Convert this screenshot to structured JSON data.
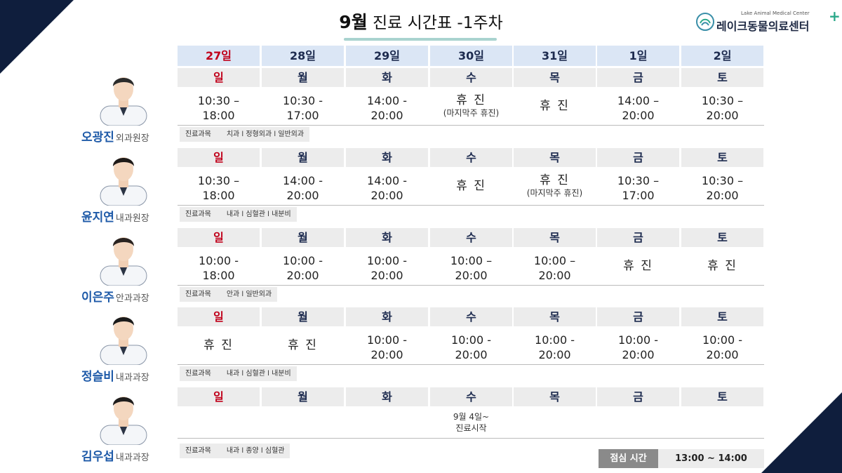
{
  "title": {
    "month": "9월",
    "rest": " 진료 시간표 -1주차"
  },
  "logo": {
    "en": "Lake Animal Medical Center",
    "ko": "레이크동물의료센터",
    "plus": "+"
  },
  "dates": [
    "27일",
    "28일",
    "29일",
    "30일",
    "31일",
    "1일",
    "2일"
  ],
  "weekdays": [
    "일",
    "월",
    "화",
    "수",
    "목",
    "금",
    "토"
  ],
  "subject_label": "진료과목",
  "doctors": [
    {
      "name": "오광진",
      "title": "외과원장",
      "subjects": "치과 l 정형외과 l 일반외과",
      "hours": [
        {
          "main": "10:30 –",
          "sub": "18:00"
        },
        {
          "main": "10:30 -",
          "sub": "17:00"
        },
        {
          "main": "14:00 -",
          "sub": "20:00"
        },
        {
          "main": "휴 진",
          "sub": "(마지막주 휴진)"
        },
        {
          "main": "휴 진",
          "sub": ""
        },
        {
          "main": "14:00 –",
          "sub": "20:00"
        },
        {
          "main": "10:30 –",
          "sub": "20:00"
        }
      ]
    },
    {
      "name": "윤지연",
      "title": "내과원장",
      "subjects": "내과 l 심혈관 l 내분비",
      "hours": [
        {
          "main": "10:30 –",
          "sub": "18:00"
        },
        {
          "main": "14:00 -",
          "sub": "20:00"
        },
        {
          "main": "14:00 -",
          "sub": "20:00"
        },
        {
          "main": "휴 진",
          "sub": ""
        },
        {
          "main": "휴 진",
          "sub": "(마지막주 휴진)"
        },
        {
          "main": "10:30 –",
          "sub": "17:00"
        },
        {
          "main": "10:30 –",
          "sub": "20:00"
        }
      ]
    },
    {
      "name": "이은주",
      "title": "안과과장",
      "subjects": "안과 l 일반외과",
      "hours": [
        {
          "main": "10:00 -",
          "sub": "18:00"
        },
        {
          "main": "10:00 -",
          "sub": "20:00"
        },
        {
          "main": "10:00 -",
          "sub": "20:00"
        },
        {
          "main": "10:00 –",
          "sub": "20:00"
        },
        {
          "main": "10:00 –",
          "sub": "20:00"
        },
        {
          "main": "휴 진",
          "sub": ""
        },
        {
          "main": "휴 진",
          "sub": ""
        }
      ]
    },
    {
      "name": "정슬비",
      "title": "내과과장",
      "subjects": "내과 l 심혈관 l 내분비",
      "hours": [
        {
          "main": "휴 진",
          "sub": ""
        },
        {
          "main": "휴 진",
          "sub": ""
        },
        {
          "main": "10:00 -",
          "sub": "20:00"
        },
        {
          "main": "10:00 -",
          "sub": "20:00"
        },
        {
          "main": "10:00 -",
          "sub": "20:00"
        },
        {
          "main": "10:00 -",
          "sub": "20:00"
        },
        {
          "main": "10:00 -",
          "sub": "20:00"
        }
      ]
    },
    {
      "name": "김우섭",
      "title": "내과과장",
      "subjects": "내과 l 종양 l 심혈관",
      "note": "9월 4일~\n진료시작",
      "hours": []
    }
  ],
  "lunch": {
    "label": "점심 시간",
    "value": "13:00 ~ 14:00"
  },
  "colors": {
    "navy": "#0f1e3d",
    "sunday_red": "#c0001a",
    "name_blue": "#1e5aa8",
    "header_blue": "#dbe6f5"
  },
  "icons": [
    "doctor-portrait-icon",
    "logo-mark-icon"
  ]
}
